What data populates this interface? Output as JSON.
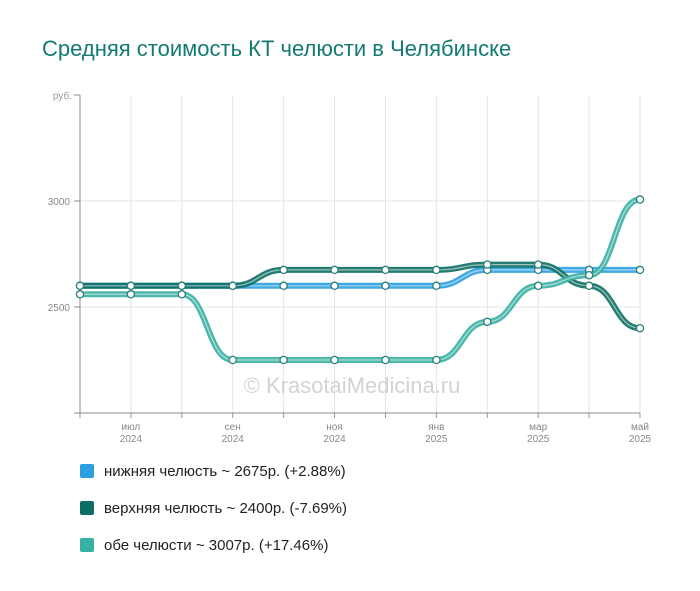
{
  "title": "Средняя стоимость КТ челюсти в Челябинске",
  "watermark": "© KrasotaiMedicina.ru",
  "chart_data": {
    "type": "line",
    "ylabel": "руб.",
    "ylim": [
      2000,
      3500
    ],
    "yticks": [
      2500,
      3000
    ],
    "x": [
      "2024-06",
      "2024-07",
      "2024-08",
      "2024-09",
      "2024-10",
      "2024-11",
      "2024-12",
      "2025-01",
      "2025-02",
      "2025-03",
      "2025-04",
      "2025-05"
    ],
    "xtick_labels": [
      {
        "month": "июл",
        "year": "2024",
        "index": 1
      },
      {
        "month": "сен",
        "year": "2024",
        "index": 3
      },
      {
        "month": "ноя",
        "year": "2024",
        "index": 5
      },
      {
        "month": "янв",
        "year": "2025",
        "index": 7
      },
      {
        "month": "мар",
        "year": "2025",
        "index": 9
      },
      {
        "month": "май",
        "year": "2025",
        "index": 11
      }
    ],
    "grid": true,
    "series": [
      {
        "name": "нижняя челюсть ~ 2675р. (+2.88%)",
        "color": "#2b9fe0",
        "values": [
          2600,
          2600,
          2600,
          2600,
          2600,
          2600,
          2600,
          2600,
          2675,
          2675,
          2675,
          2675
        ]
      },
      {
        "name": "верхняя челюсть ~ 2400р. (-7.69%)",
        "color": "#0d6e63",
        "values": [
          2600,
          2600,
          2600,
          2600,
          2675,
          2675,
          2675,
          2675,
          2700,
          2700,
          2600,
          2400
        ]
      },
      {
        "name": "обе челюсти ~ 3007р. (+17.46%)",
        "color": "#38b0a3",
        "values": [
          2560,
          2560,
          2560,
          2250,
          2250,
          2250,
          2250,
          2250,
          2430,
          2600,
          2650,
          3007
        ]
      }
    ]
  }
}
